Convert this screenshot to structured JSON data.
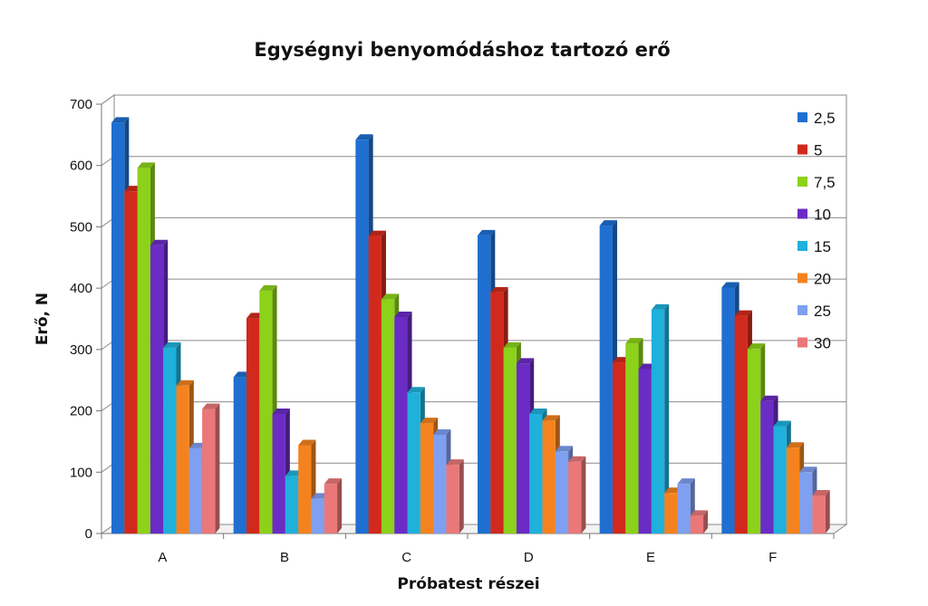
{
  "chart_data": {
    "type": "bar",
    "title": "Egységnyi benyomódáshoz tartozó erő",
    "xlabel": "Próbatest részei",
    "ylabel": "Erő, N",
    "categories": [
      "A",
      "B",
      "C",
      "D",
      "E",
      "F"
    ],
    "ylim": [
      0,
      700
    ],
    "yticks": [
      0,
      100,
      200,
      300,
      400,
      500,
      600,
      700
    ],
    "grid": true,
    "legend_position": "right",
    "series": [
      {
        "name": "2,5",
        "color": "#1f6fd1",
        "values": [
          670,
          255,
          642,
          486,
          502,
          401
        ]
      },
      {
        "name": "5",
        "color": "#d12a1c",
        "values": [
          558,
          351,
          485,
          393,
          279,
          355
        ]
      },
      {
        "name": "7,5",
        "color": "#8cd11a",
        "values": [
          596,
          396,
          382,
          303,
          310,
          301
        ]
      },
      {
        "name": "10",
        "color": "#6a2cc4",
        "values": [
          470,
          195,
          353,
          277,
          268,
          216
        ]
      },
      {
        "name": "15",
        "color": "#1fb0dc",
        "values": [
          303,
          94,
          230,
          195,
          365,
          175
        ]
      },
      {
        "name": "20",
        "color": "#f4831f",
        "values": [
          241,
          144,
          180,
          184,
          66,
          140
        ]
      },
      {
        "name": "25",
        "color": "#7f9ff0",
        "values": [
          139,
          57,
          161,
          134,
          81,
          100
        ]
      },
      {
        "name": "30",
        "color": "#ea7878",
        "values": [
          203,
          81,
          112,
          117,
          29,
          62
        ]
      }
    ]
  }
}
